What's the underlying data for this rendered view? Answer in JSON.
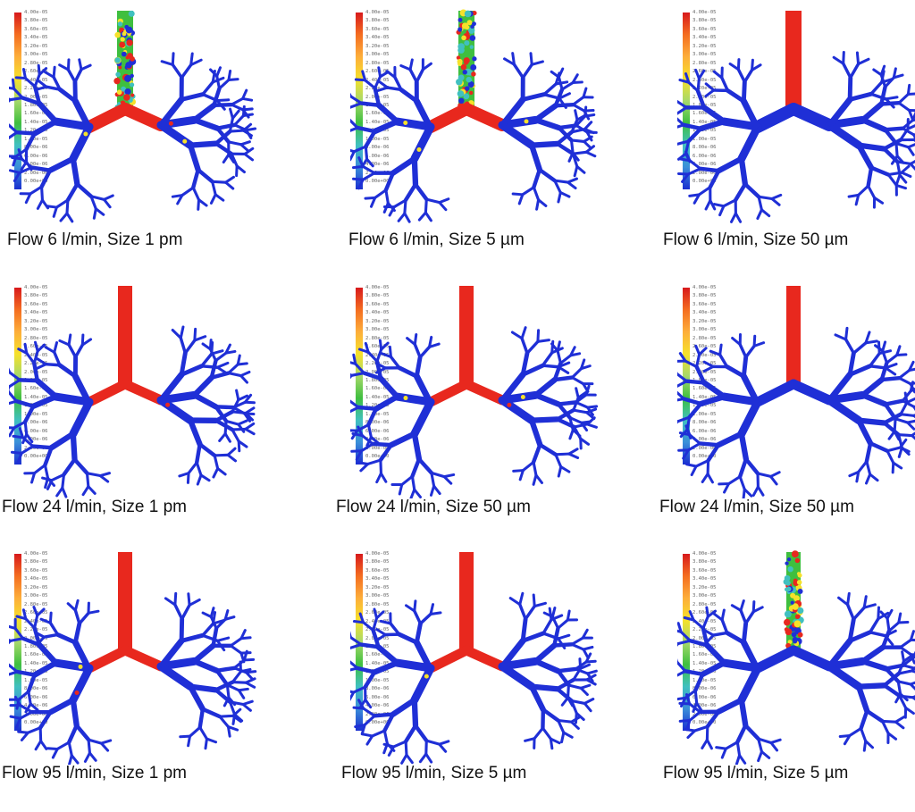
{
  "colorbar": {
    "labels": [
      "4.00e-05",
      "3.80e-05",
      "3.60e-05",
      "3.40e-05",
      "3.20e-05",
      "3.00e-05",
      "2.80e-05",
      "2.60e-05",
      "2.40e-05",
      "2.20e-05",
      "2.00e-05",
      "1.80e-05",
      "1.60e-05",
      "1.40e-05",
      "1.20e-05",
      "1.00e-05",
      "8.00e-06",
      "6.00e-06",
      "4.00e-06",
      "2.00e-06",
      "0.00e+00"
    ],
    "colors": [
      "#d7191c",
      "#f46d20",
      "#fdae3a",
      "#f6e12a",
      "#a6d96a",
      "#3fbf3f",
      "#40c0c0",
      "#3a8fd9",
      "#1a2fd0"
    ]
  },
  "colors": {
    "airway": "#1f2fd6",
    "deposit": "#e8281e"
  },
  "panels": [
    {
      "caption": "Flow 6 l/min, Size 1 pm",
      "trachea": "mixed",
      "spread": "high"
    },
    {
      "caption": "Flow 6 l/min, Size 5 µm",
      "trachea": "mixed",
      "spread": "high"
    },
    {
      "caption": "Flow 6 l/min, Size 50 µm",
      "trachea": "red",
      "spread": "low"
    },
    {
      "caption": "Flow 24 l/min, Size 1 pm",
      "trachea": "red",
      "spread": "high"
    },
    {
      "caption": "Flow 24 l/min, Size 50 µm",
      "trachea": "red",
      "spread": "high"
    },
    {
      "caption": "Flow 24 l/min, Size 50 µm",
      "trachea": "red",
      "spread": "low"
    },
    {
      "caption": "Flow 95 l/min, Size 1 pm",
      "trachea": "red",
      "spread": "high"
    },
    {
      "caption": "Flow 95 l/min, Size 5 µm",
      "trachea": "red",
      "spread": "high"
    },
    {
      "caption": "Flow 95 l/min, Size 5 µm",
      "trachea": "mixed",
      "spread": "low"
    }
  ]
}
